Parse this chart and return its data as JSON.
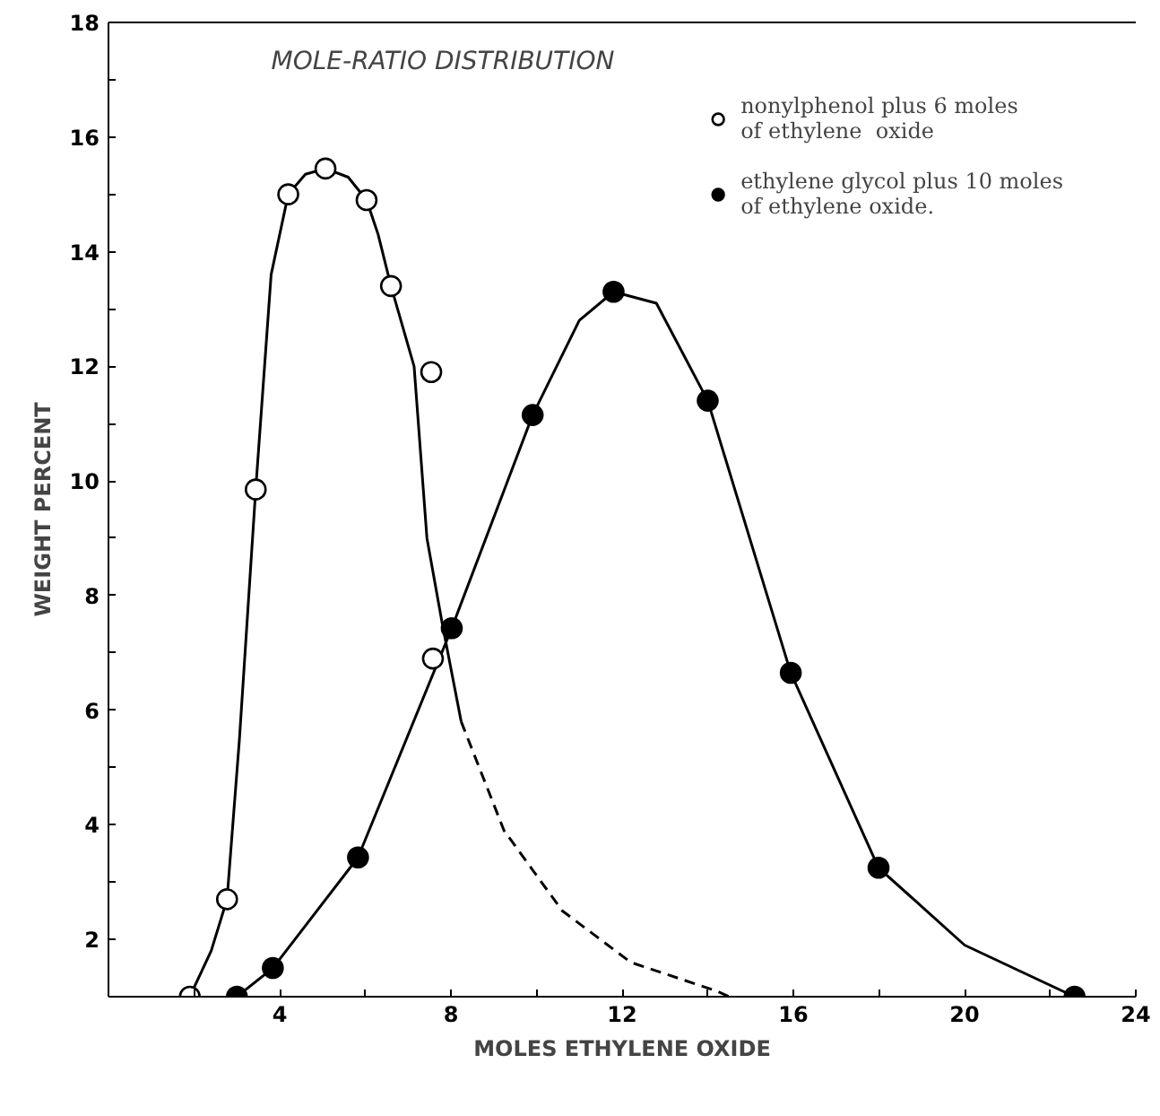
{
  "chart_data": {
    "type": "scatter",
    "title": "MOLE-RATIO DISTRIBUTION",
    "xlabel": "MOLES ETHYLENE OXIDE",
    "ylabel": "WEIGHT PERCENT",
    "xlim": [
      0,
      24
    ],
    "ylim": [
      1,
      18
    ],
    "xticks": [
      {
        "value": 2,
        "label": null
      },
      4,
      {
        "value": 6,
        "label": null
      },
      8,
      {
        "value": 10,
        "label": null
      },
      12,
      {
        "value": 14,
        "label": null
      },
      16,
      {
        "value": 18,
        "label": null
      },
      20,
      {
        "value": 22,
        "label": null
      },
      24
    ],
    "yticks": [
      2,
      {
        "value": 3,
        "label": null
      },
      4,
      {
        "value": 5,
        "label": null
      },
      6,
      {
        "value": 7,
        "label": null
      },
      8,
      {
        "value": 9,
        "label": null
      },
      10,
      {
        "value": 11,
        "label": null
      },
      12,
      {
        "value": 13,
        "label": null
      },
      14,
      {
        "value": 15,
        "label": null
      },
      16,
      {
        "value": 17,
        "label": null
      },
      18
    ],
    "grid": false,
    "legend": "top right",
    "series": [
      {
        "type": "line",
        "color": "#000000",
        "line_style": "solid",
        "marker": "none",
        "x": [
          1.9,
          2.4,
          2.77,
          3.06,
          3.44,
          3.8,
          4.2,
          4.6,
          5.07,
          5.6,
          6.03,
          6.3,
          6.6,
          7.14,
          7.44,
          7.8,
          8.24
        ],
        "values": [
          1.0,
          1.8,
          2.7,
          5.5,
          9.85,
          13.6,
          15.0,
          15.35,
          15.45,
          15.3,
          14.9,
          14.3,
          13.4,
          12.0,
          9.0,
          7.5,
          5.8
        ]
      },
      {
        "type": "line",
        "color": "#000000",
        "line_style": "dashed",
        "marker": "none",
        "x": [
          8.24,
          9.24,
          10.6,
          12.2,
          14.2,
          14.5
        ],
        "values": [
          5.8,
          3.9,
          2.5,
          1.6,
          1.1,
          1.0
        ]
      },
      {
        "type": "line",
        "color": "#000000",
        "line_style": "solid",
        "marker": "none",
        "x": [
          3.0,
          3.84,
          5.83,
          8.02,
          9.91,
          11.0,
          11.8,
          12.8,
          14.0,
          15.94,
          17.99,
          20.0,
          22.57
        ],
        "values": [
          1.0,
          1.5,
          3.43,
          7.43,
          11.15,
          12.8,
          13.3,
          13.1,
          11.4,
          6.65,
          3.25,
          1.9,
          1.0
        ]
      },
      {
        "name": "nonylphenol plus 6 moles\nof ethylene  oxide",
        "color": "#ffffff",
        "marker": "circle",
        "x": [
          1.9,
          2.77,
          3.44,
          4.2,
          5.07,
          6.03,
          6.6,
          7.54,
          7.58
        ],
        "values": [
          1.0,
          2.7,
          9.85,
          15.0,
          15.45,
          14.9,
          13.4,
          11.9,
          6.9
        ]
      },
      {
        "name": "ethylene glycol plus 10 moles\nof ethylene oxide.",
        "color": "#000000",
        "marker": "circle",
        "x": [
          3.0,
          3.84,
          5.83,
          8.02,
          9.91,
          11.8,
          14.0,
          15.94,
          17.99,
          22.57
        ],
        "values": [
          1.0,
          1.5,
          3.43,
          7.43,
          11.15,
          13.3,
          11.4,
          6.65,
          3.25,
          1.0
        ]
      }
    ]
  }
}
